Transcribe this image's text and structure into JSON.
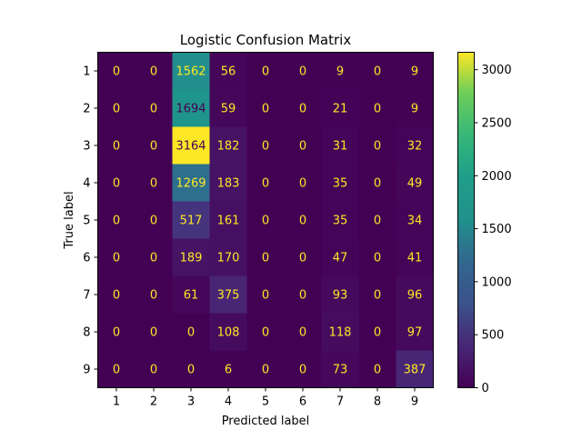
{
  "chart_data": {
    "type": "heatmap",
    "title": "Logistic Confusion Matrix",
    "xlabel": "Predicted label",
    "ylabel": "True label",
    "x_categories": [
      "1",
      "2",
      "3",
      "4",
      "5",
      "6",
      "7",
      "8",
      "9"
    ],
    "y_categories": [
      "1",
      "2",
      "3",
      "4",
      "5",
      "6",
      "7",
      "8",
      "9"
    ],
    "matrix": [
      [
        0,
        0,
        1562,
        56,
        0,
        0,
        9,
        0,
        9
      ],
      [
        0,
        0,
        1694,
        59,
        0,
        0,
        21,
        0,
        9
      ],
      [
        0,
        0,
        3164,
        182,
        0,
        0,
        31,
        0,
        32
      ],
      [
        0,
        0,
        1269,
        183,
        0,
        0,
        35,
        0,
        49
      ],
      [
        0,
        0,
        517,
        161,
        0,
        0,
        35,
        0,
        34
      ],
      [
        0,
        0,
        189,
        170,
        0,
        0,
        47,
        0,
        41
      ],
      [
        0,
        0,
        61,
        375,
        0,
        0,
        93,
        0,
        96
      ],
      [
        0,
        0,
        0,
        108,
        0,
        0,
        118,
        0,
        97
      ],
      [
        0,
        0,
        0,
        6,
        0,
        0,
        73,
        0,
        387
      ]
    ],
    "colormap": "viridis",
    "colorbar": {
      "min": 0,
      "max": 3164,
      "ticks": [
        0,
        500,
        1000,
        1500,
        2000,
        2500,
        3000
      ]
    },
    "text_color_low": "#fde725",
    "text_color_high": "#440154",
    "grid": false
  }
}
